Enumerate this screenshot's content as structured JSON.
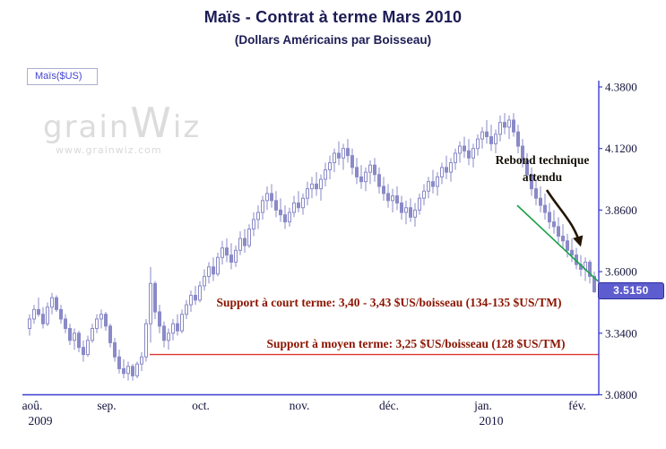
{
  "header": {
    "title": "Maïs - Contrat à terme Mars 2010",
    "subtitle": "(Dollars Américains par Boisseau)"
  },
  "legend": {
    "label": "Maïs($US)"
  },
  "watermark": {
    "parts": [
      "grain",
      "W",
      "iz"
    ],
    "url": "www.grainwiz.com"
  },
  "annotations": {
    "rebond_line1": "Rebond technique",
    "rebond_line2": "attendu",
    "support_short": "Support à court terme: 3,40 - 3,43 $US/boisseau (134-135 $US/TM)",
    "support_medium": "Support à moyen terme: 3,25 $US/boisseau (128 $US/TM)"
  },
  "price_label": "3.5150",
  "colors": {
    "axis": "#3c3cd0",
    "candle": "#8a8ac8",
    "trend": "#17a244",
    "support": "#e03434",
    "support_text": "#8b1500",
    "price_bg": "#5d5dcf",
    "title": "#1c1c55",
    "tick_text": "#14143c",
    "arrow": "#241505",
    "watermark": "#dcdcdc"
  },
  "chart_data": {
    "type": "candlestick",
    "title": "Maïs - Contrat à terme Mars 2010",
    "subtitle": "(Dollars Américains par Boisseau)",
    "series_name": "Maïs($US)",
    "unit": "$US/boisseau",
    "ylim": [
      3.08,
      4.38
    ],
    "y_ticks": [
      "4.3800",
      "4.1200",
      "3.8600",
      "3.6000",
      "3.3400",
      "3.0800"
    ],
    "x_axis": [
      {
        "label": "aoû.",
        "i": 0,
        "year": "2009"
      },
      {
        "label": "sep.",
        "i": 17
      },
      {
        "label": "oct.",
        "i": 38
      },
      {
        "label": "nov.",
        "i": 60
      },
      {
        "label": "déc.",
        "i": 80
      },
      {
        "label": "jan.",
        "i": 101,
        "year": "2010"
      },
      {
        "label": "fév.",
        "i": 122
      }
    ],
    "last_price": 3.515,
    "support_levels": {
      "short_term": [
        3.4,
        3.43
      ],
      "medium_term": 3.25
    },
    "support_line": {
      "v": 3.25,
      "from_i": 27
    },
    "trendline": {
      "from": {
        "i": 109,
        "v": 3.88
      },
      "to": {
        "i": 127,
        "v": 3.56
      }
    },
    "candles": [
      [
        3.36,
        3.42,
        3.33,
        3.4
      ],
      [
        3.4,
        3.46,
        3.38,
        3.44
      ],
      [
        3.44,
        3.49,
        3.41,
        3.42
      ],
      [
        3.42,
        3.45,
        3.36,
        3.38
      ],
      [
        3.38,
        3.47,
        3.37,
        3.45
      ],
      [
        3.45,
        3.51,
        3.42,
        3.49
      ],
      [
        3.49,
        3.5,
        3.43,
        3.44
      ],
      [
        3.44,
        3.46,
        3.38,
        3.4
      ],
      [
        3.4,
        3.42,
        3.34,
        3.36
      ],
      [
        3.36,
        3.38,
        3.29,
        3.31
      ],
      [
        3.31,
        3.36,
        3.27,
        3.34
      ],
      [
        3.34,
        3.35,
        3.26,
        3.28
      ],
      [
        3.28,
        3.31,
        3.22,
        3.25
      ],
      [
        3.25,
        3.33,
        3.24,
        3.31
      ],
      [
        3.31,
        3.38,
        3.3,
        3.36
      ],
      [
        3.36,
        3.42,
        3.34,
        3.4
      ],
      [
        3.4,
        3.44,
        3.36,
        3.42
      ],
      [
        3.42,
        3.43,
        3.35,
        3.37
      ],
      [
        3.37,
        3.38,
        3.28,
        3.3
      ],
      [
        3.3,
        3.32,
        3.22,
        3.24
      ],
      [
        3.24,
        3.27,
        3.17,
        3.19
      ],
      [
        3.19,
        3.23,
        3.15,
        3.17
      ],
      [
        3.17,
        3.22,
        3.14,
        3.2
      ],
      [
        3.2,
        3.21,
        3.14,
        3.16
      ],
      [
        3.16,
        3.22,
        3.15,
        3.21
      ],
      [
        3.21,
        3.26,
        3.18,
        3.24
      ],
      [
        3.24,
        3.4,
        3.22,
        3.38
      ],
      [
        3.38,
        3.62,
        3.3,
        3.55
      ],
      [
        3.55,
        3.56,
        3.4,
        3.43
      ],
      [
        3.43,
        3.46,
        3.34,
        3.37
      ],
      [
        3.37,
        3.39,
        3.28,
        3.31
      ],
      [
        3.31,
        3.36,
        3.27,
        3.34
      ],
      [
        3.34,
        3.4,
        3.31,
        3.38
      ],
      [
        3.38,
        3.42,
        3.33,
        3.35
      ],
      [
        3.35,
        3.44,
        3.34,
        3.42
      ],
      [
        3.42,
        3.48,
        3.4,
        3.46
      ],
      [
        3.46,
        3.52,
        3.43,
        3.5
      ],
      [
        3.5,
        3.54,
        3.46,
        3.48
      ],
      [
        3.48,
        3.56,
        3.47,
        3.54
      ],
      [
        3.54,
        3.61,
        3.52,
        3.58
      ],
      [
        3.58,
        3.64,
        3.55,
        3.62
      ],
      [
        3.62,
        3.66,
        3.56,
        3.59
      ],
      [
        3.59,
        3.68,
        3.58,
        3.66
      ],
      [
        3.66,
        3.73,
        3.63,
        3.7
      ],
      [
        3.7,
        3.74,
        3.64,
        3.67
      ],
      [
        3.67,
        3.72,
        3.61,
        3.64
      ],
      [
        3.64,
        3.71,
        3.62,
        3.69
      ],
      [
        3.69,
        3.77,
        3.67,
        3.74
      ],
      [
        3.74,
        3.78,
        3.68,
        3.71
      ],
      [
        3.71,
        3.8,
        3.7,
        3.78
      ],
      [
        3.78,
        3.85,
        3.75,
        3.82
      ],
      [
        3.82,
        3.88,
        3.78,
        3.85
      ],
      [
        3.85,
        3.92,
        3.82,
        3.9
      ],
      [
        3.9,
        3.96,
        3.86,
        3.93
      ],
      [
        3.93,
        3.97,
        3.87,
        3.9
      ],
      [
        3.9,
        3.94,
        3.83,
        3.86
      ],
      [
        3.86,
        3.91,
        3.81,
        3.84
      ],
      [
        3.84,
        3.88,
        3.78,
        3.81
      ],
      [
        3.81,
        3.87,
        3.79,
        3.85
      ],
      [
        3.85,
        3.92,
        3.83,
        3.89
      ],
      [
        3.89,
        3.94,
        3.85,
        3.87
      ],
      [
        3.87,
        3.93,
        3.84,
        3.91
      ],
      [
        3.91,
        3.98,
        3.88,
        3.95
      ],
      [
        3.95,
        4.0,
        3.91,
        3.97
      ],
      [
        3.97,
        4.02,
        3.92,
        3.95
      ],
      [
        3.95,
        4.01,
        3.9,
        3.99
      ],
      [
        3.99,
        4.06,
        3.96,
        4.03
      ],
      [
        4.03,
        4.09,
        3.99,
        4.06
      ],
      [
        4.06,
        4.12,
        4.02,
        4.1
      ],
      [
        4.1,
        4.15,
        4.05,
        4.08
      ],
      [
        4.08,
        4.14,
        4.03,
        4.12
      ],
      [
        4.12,
        4.16,
        4.06,
        4.09
      ],
      [
        4.09,
        4.12,
        4.01,
        4.04
      ],
      [
        4.04,
        4.08,
        3.97,
        4.0
      ],
      [
        4.0,
        4.05,
        3.95,
        3.98
      ],
      [
        3.98,
        4.04,
        3.94,
        4.02
      ],
      [
        4.02,
        4.07,
        3.97,
        4.05
      ],
      [
        4.05,
        4.08,
        3.98,
        4.01
      ],
      [
        4.01,
        4.04,
        3.93,
        3.96
      ],
      [
        3.96,
        4.0,
        3.9,
        3.93
      ],
      [
        3.93,
        3.97,
        3.87,
        3.9
      ],
      [
        3.9,
        3.95,
        3.85,
        3.92
      ],
      [
        3.92,
        3.96,
        3.86,
        3.89
      ],
      [
        3.89,
        3.92,
        3.82,
        3.85
      ],
      [
        3.85,
        3.9,
        3.8,
        3.87
      ],
      [
        3.87,
        3.91,
        3.81,
        3.83
      ],
      [
        3.83,
        3.89,
        3.79,
        3.86
      ],
      [
        3.86,
        3.93,
        3.84,
        3.91
      ],
      [
        3.91,
        3.97,
        3.88,
        3.94
      ],
      [
        3.94,
        4.0,
        3.91,
        3.98
      ],
      [
        3.98,
        4.03,
        3.93,
        3.96
      ],
      [
        3.96,
        4.02,
        3.92,
        4.0
      ],
      [
        4.0,
        4.06,
        3.97,
        4.04
      ],
      [
        4.04,
        4.09,
        3.99,
        4.02
      ],
      [
        4.02,
        4.08,
        3.98,
        4.06
      ],
      [
        4.06,
        4.12,
        4.03,
        4.1
      ],
      [
        4.1,
        4.15,
        4.06,
        4.13
      ],
      [
        4.13,
        4.17,
        4.08,
        4.11
      ],
      [
        4.11,
        4.16,
        4.05,
        4.08
      ],
      [
        4.08,
        4.14,
        4.04,
        4.12
      ],
      [
        4.12,
        4.18,
        4.09,
        4.16
      ],
      [
        4.16,
        4.21,
        4.12,
        4.19
      ],
      [
        4.19,
        4.24,
        4.14,
        4.17
      ],
      [
        4.17,
        4.22,
        4.11,
        4.14
      ],
      [
        4.14,
        4.2,
        4.1,
        4.18
      ],
      [
        4.18,
        4.26,
        4.15,
        4.23
      ],
      [
        4.23,
        4.27,
        4.18,
        4.21
      ],
      [
        4.21,
        4.26,
        4.16,
        4.24
      ],
      [
        4.24,
        4.27,
        4.17,
        4.19
      ],
      [
        4.19,
        4.22,
        4.1,
        4.13
      ],
      [
        4.13,
        4.16,
        4.04,
        4.07
      ],
      [
        4.07,
        4.1,
        3.98,
        4.01
      ],
      [
        4.01,
        4.04,
        3.92,
        3.95
      ],
      [
        3.95,
        3.99,
        3.88,
        3.91
      ],
      [
        3.91,
        3.96,
        3.85,
        3.88
      ],
      [
        3.88,
        3.93,
        3.82,
        3.85
      ],
      [
        3.85,
        3.89,
        3.78,
        3.81
      ],
      [
        3.81,
        3.86,
        3.76,
        3.79
      ],
      [
        3.79,
        3.83,
        3.72,
        3.75
      ],
      [
        3.75,
        3.8,
        3.7,
        3.73
      ],
      [
        3.73,
        3.76,
        3.66,
        3.69
      ],
      [
        3.69,
        3.74,
        3.64,
        3.67
      ],
      [
        3.67,
        3.7,
        3.61,
        3.63
      ],
      [
        3.63,
        3.67,
        3.58,
        3.61
      ],
      [
        3.61,
        3.66,
        3.56,
        3.64
      ],
      [
        3.64,
        3.65,
        3.55,
        3.58
      ],
      [
        3.58,
        3.6,
        3.51,
        3.515
      ]
    ]
  }
}
